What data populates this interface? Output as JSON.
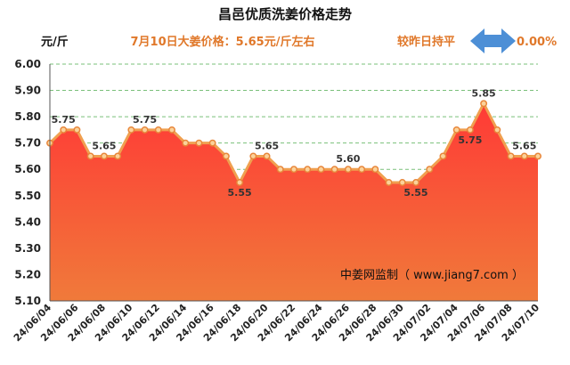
{
  "chart_data": {
    "type": "area",
    "title": "昌邑优质洗姜价格走势",
    "subtitle": "7月10日大姜价格：5.65元/斤左右",
    "unit_label": "元/斤",
    "comparison_text": "较昨日持平",
    "change_value": "0.00%",
    "watermark": "中姜网监制（ www.jiang7.com ）",
    "ylim": [
      5.1,
      6.0
    ],
    "y_ticks": [
      "6.00",
      "5.90",
      "5.80",
      "5.70",
      "5.60",
      "5.50",
      "5.40",
      "5.30",
      "5.20",
      "5.10"
    ],
    "x_tick_labels": [
      "24/06/04",
      "24/06/06",
      "24/06/08",
      "24/06/10",
      "24/06/12",
      "24/06/14",
      "24/06/16",
      "24/06/18",
      "24/06/20",
      "24/06/22",
      "24/06/24",
      "24/06/26",
      "24/06/28",
      "24/06/30",
      "24/07/02",
      "24/07/04",
      "24/07/06",
      "24/07/08",
      "24/07/10"
    ],
    "x": [
      "24/06/04",
      "24/06/05",
      "24/06/06",
      "24/06/07",
      "24/06/08",
      "24/06/09",
      "24/06/10",
      "24/06/11",
      "24/06/12",
      "24/06/13",
      "24/06/14",
      "24/06/15",
      "24/06/16",
      "24/06/17",
      "24/06/18",
      "24/06/19",
      "24/06/20",
      "24/06/21",
      "24/06/22",
      "24/06/23",
      "24/06/24",
      "24/06/25",
      "24/06/26",
      "24/06/27",
      "24/06/28",
      "24/06/29",
      "24/06/30",
      "24/07/01",
      "24/07/02",
      "24/07/03",
      "24/07/04",
      "24/07/05",
      "24/07/06",
      "24/07/07",
      "24/07/08",
      "24/07/09",
      "24/07/10"
    ],
    "values": [
      5.7,
      5.75,
      5.75,
      5.65,
      5.65,
      5.65,
      5.75,
      5.75,
      5.75,
      5.75,
      5.7,
      5.7,
      5.7,
      5.65,
      5.55,
      5.65,
      5.65,
      5.6,
      5.6,
      5.6,
      5.6,
      5.6,
      5.6,
      5.6,
      5.6,
      5.55,
      5.55,
      5.55,
      5.6,
      5.65,
      5.75,
      5.75,
      5.85,
      5.75,
      5.65,
      5.65,
      5.65
    ],
    "data_labels": [
      {
        "index": 1,
        "text": "5.75"
      },
      {
        "index": 4,
        "text": "5.65"
      },
      {
        "index": 7,
        "text": "5.75"
      },
      {
        "index": 14,
        "text": "5.55"
      },
      {
        "index": 16,
        "text": "5.65"
      },
      {
        "index": 22,
        "text": "5.60"
      },
      {
        "index": 27,
        "text": "5.55"
      },
      {
        "index": 31,
        "text": "5.75"
      },
      {
        "index": 32,
        "text": "5.85"
      },
      {
        "index": 35,
        "text": "5.65"
      }
    ],
    "grid": true,
    "colors": {
      "line": "#f0a050",
      "marker": "#e8863a",
      "area_top": "#ff3a36",
      "area_bottom": "#f07a3a",
      "grid": "#7ac07a",
      "arrow": "#4d8fd6",
      "accent_text": "#e0782a"
    }
  }
}
